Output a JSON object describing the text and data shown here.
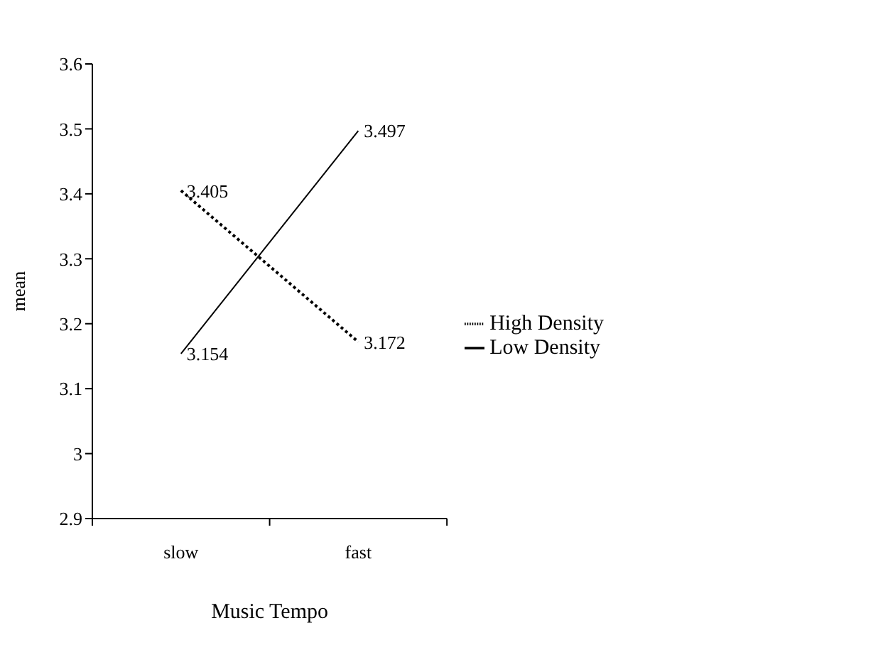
{
  "chart_data": {
    "type": "line",
    "xlabel": "Music Tempo",
    "ylabel": "mean",
    "categories": [
      "slow",
      "fast"
    ],
    "series": [
      {
        "name": "High Density",
        "color": "#000000",
        "values": [
          3.405,
          3.172
        ],
        "line_style": "dotted"
      },
      {
        "name": "Low Density",
        "color": "#000000",
        "values": [
          3.154,
          3.497
        ],
        "line_style": "solid"
      }
    ],
    "ylim": [
      2.9,
      3.6
    ],
    "yticks": [
      2.9,
      3,
      3.1,
      3.2,
      3.3,
      3.4,
      3.5,
      3.6
    ],
    "data_labels": true,
    "legend": "right",
    "grid": false,
    "marker": "none"
  }
}
